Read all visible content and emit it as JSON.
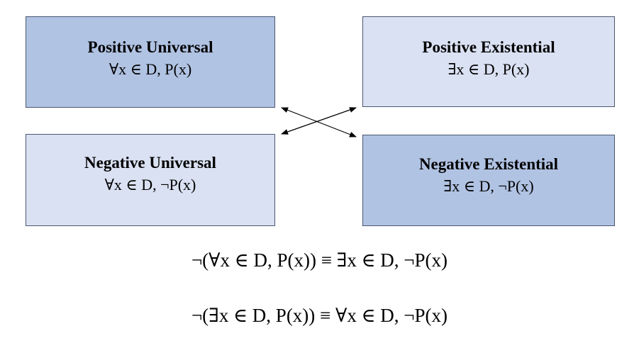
{
  "boxes": {
    "positive_universal": {
      "title": "Positive Universal",
      "formula": "∀x ∈ D, P(x)"
    },
    "positive_existential": {
      "title": "Positive Existential",
      "formula": "∃x ∈ D, P(x)"
    },
    "negative_universal": {
      "title": "Negative Universal",
      "formula": "∀x ∈ D, ¬P(x)"
    },
    "negative_existential": {
      "title": "Negative Existential",
      "formula": "∃x ∈ D, ¬P(x)"
    }
  },
  "equations": [
    "¬(∀x ∈ D, P(x)) ≡ ∃x ∈ D, ¬P(x)",
    "¬(∃x ∈ D, P(x)) ≡ ∀x ∈ D, ¬P(x)"
  ],
  "colors": {
    "dark_box": "#b1c3e3",
    "light_box": "#dae1f2",
    "arrow": "#000000"
  }
}
